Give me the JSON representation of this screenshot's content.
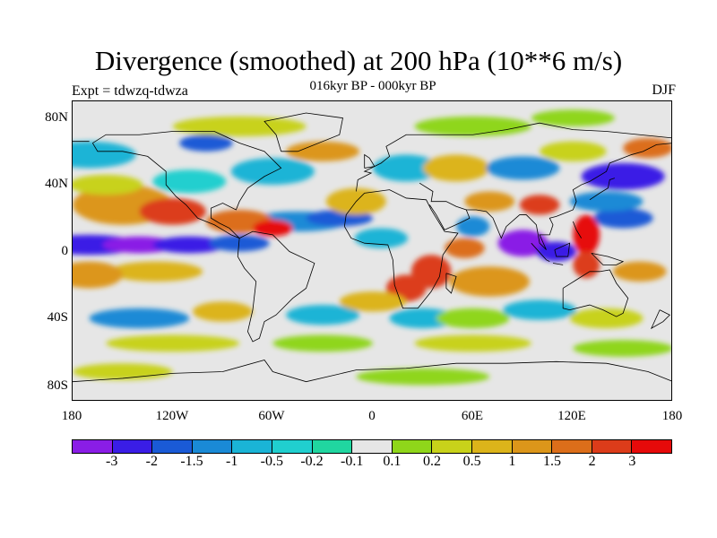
{
  "figure": {
    "title": "Divergence (smoothed) at 200 hPa (10**6 m/s)",
    "subtitle_left": "Expt = tdwzq-tdwza",
    "subtitle_center": "016kyr BP - 000kyr BP",
    "subtitle_right": "DJF"
  },
  "axes": {
    "y_ticks": [
      "80N",
      "40N",
      "0",
      "40S",
      "80S"
    ],
    "x_ticks": [
      "180",
      "120W",
      "60W",
      "0",
      "60E",
      "120E",
      "180"
    ],
    "lon_range": [
      -180,
      180
    ],
    "lat_range": [
      -90,
      90
    ]
  },
  "colorbar": {
    "colors": [
      "#8a1de6",
      "#3a1de6",
      "#1a5ad6",
      "#1a8ad6",
      "#1ab4d6",
      "#20cfcf",
      "#20d6a0",
      "#e6e6e6",
      "#8fd61a",
      "#c8d21a",
      "#dcb41a",
      "#dc961a",
      "#dc6e1a",
      "#dc3c1a",
      "#e60a0a"
    ],
    "labels": [
      "-3",
      "-2",
      "-1.5",
      "-1",
      "-0.5",
      "-0.2",
      "-0.1",
      "0.1",
      "0.2",
      "0.5",
      "1",
      "1.5",
      "2",
      "3"
    ]
  },
  "chart_data": {
    "type": "heatmap",
    "title": "Divergence (smoothed) at 200 hPa (10**6 m/s)",
    "subtitle": "016kyr BP - 000kyr BP",
    "season": "DJF",
    "experiment": "Expt = tdwzq-tdwza",
    "levels": [
      -3,
      -2,
      -1.5,
      -1,
      -0.5,
      -0.2,
      -0.1,
      0.1,
      0.2,
      0.5,
      1,
      1.5,
      2,
      3
    ],
    "xlim": [
      -180,
      180
    ],
    "ylim": [
      -90,
      90
    ]
  }
}
